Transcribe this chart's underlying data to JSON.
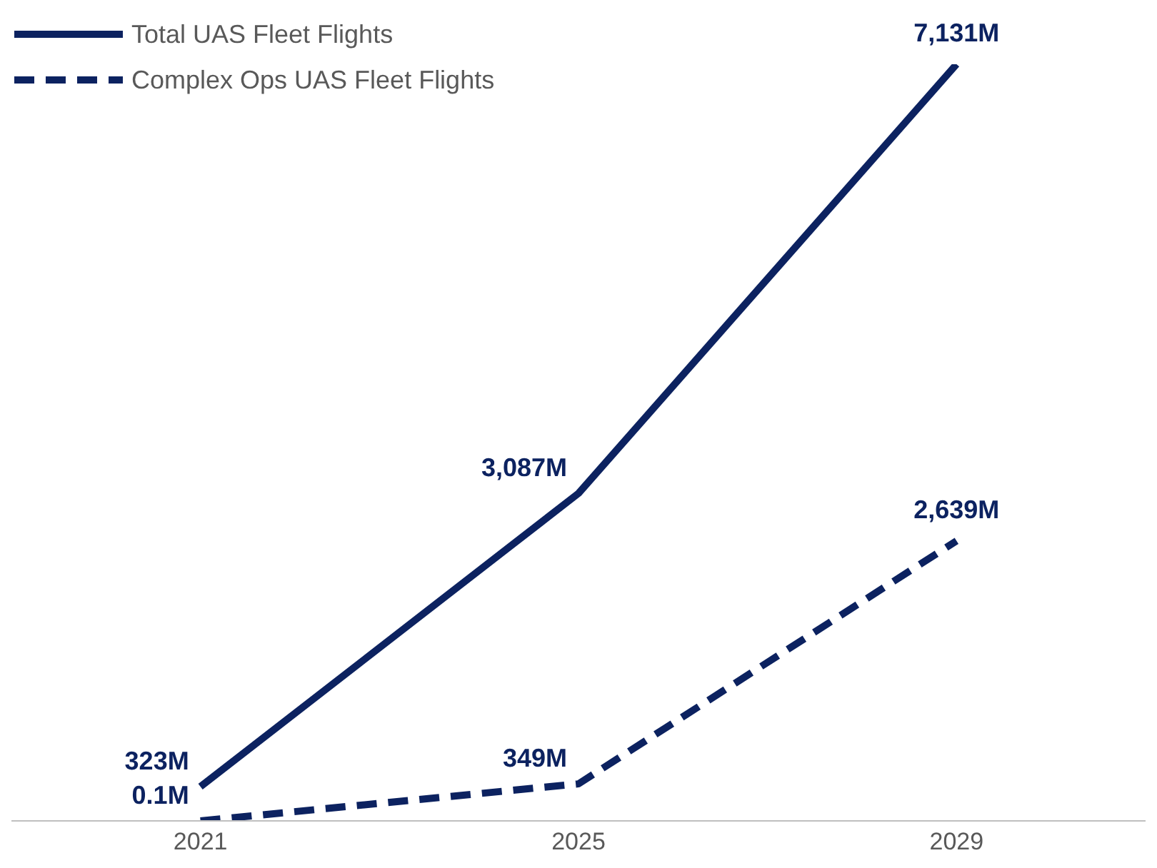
{
  "chart_data": {
    "type": "line",
    "categories": [
      "2021",
      "2025",
      "2029"
    ],
    "tick_labels": "x",
    "legend": "top left",
    "grid": false,
    "marker": "none",
    "series": [
      {
        "name": "Total UAS Fleet Flights",
        "color": "#0c2260",
        "values": [
          323,
          3087,
          7131
        ],
        "line_style": "solid",
        "value_labels": [
          "323M",
          "3,087M",
          "7,131M"
        ]
      },
      {
        "name": "Complex Ops UAS Fleet Flights",
        "color": "#0c2260",
        "values": [
          0.1,
          349,
          2639
        ],
        "line_style": "dashed",
        "value_labels": [
          "0.1M",
          "349M",
          "2,639M"
        ]
      }
    ]
  }
}
